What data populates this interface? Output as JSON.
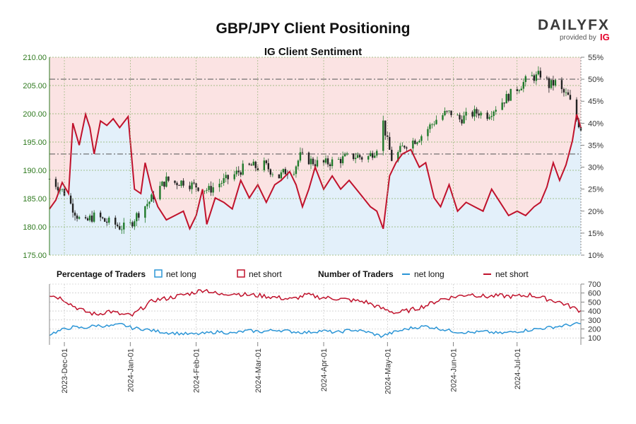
{
  "header": {
    "title": "GBP/JPY Client Positioning",
    "subtitle": "IG Client Sentiment"
  },
  "branding": {
    "logo": "DAILYFX",
    "provided_by": "provided by",
    "provider": "IG"
  },
  "colors": {
    "net_long": "#2b95d6",
    "net_short": "#c0122c",
    "long_zone": "#e3f0fa",
    "short_zone": "#fbe3e3",
    "candle_up": "#1f7a2a",
    "candle_down": "#222222",
    "left_axis": "#2f7a1f"
  },
  "legend": {
    "pct_heading": "Percentage of Traders",
    "num_heading": "Number of Traders",
    "net_long": "net long",
    "net_short": "net short"
  },
  "chart_data": [
    {
      "type": "candlestick+line",
      "title": "IG Client Sentiment",
      "y_left_ticks": [
        "210.00",
        "205.00",
        "200.00",
        "195.00",
        "190.00",
        "185.00",
        "180.00",
        "175.00"
      ],
      "y_left_range": [
        175,
        210
      ],
      "y_right_ticks": [
        "55%",
        "50%",
        "45%",
        "40%",
        "35%",
        "30%",
        "25%",
        "20%",
        "15%",
        "10%"
      ],
      "y_right_range": [
        10,
        55
      ],
      "x_ticks": [
        "2023-Dec-01",
        "2024-Jan-01",
        "2024-Feb-01",
        "2024-Mar-01",
        "2024-Apr-01",
        "2024-May-01",
        "2024-Jun-01",
        "2024-Jul-01"
      ],
      "reference_lines_pct": [
        50,
        33
      ],
      "price_keypoints": [
        [
          "2023-11-24",
          188.5
        ],
        [
          "2023-11-28",
          187.2
        ],
        [
          "2023-12-01",
          186.0
        ],
        [
          "2023-12-04",
          184.0
        ],
        [
          "2023-12-07",
          182.0
        ],
        [
          "2023-12-10",
          180.2
        ],
        [
          "2023-12-13",
          181.5
        ],
        [
          "2023-12-16",
          182.0
        ],
        [
          "2023-12-20",
          181.0
        ],
        [
          "2023-12-24",
          180.6
        ],
        [
          "2023-12-27",
          180.0
        ],
        [
          "2023-12-31",
          179.8
        ],
        [
          "2024-01-03",
          181.5
        ],
        [
          "2024-01-06",
          183.0
        ],
        [
          "2024-01-10",
          184.5
        ],
        [
          "2024-01-14",
          186.5
        ],
        [
          "2024-01-18",
          188.3
        ],
        [
          "2024-01-22",
          187.8
        ],
        [
          "2024-01-26",
          188.0
        ],
        [
          "2024-01-30",
          187.4
        ],
        [
          "2024-02-03",
          187.0
        ],
        [
          "2024-02-07",
          186.5
        ],
        [
          "2024-02-11",
          187.5
        ],
        [
          "2024-02-15",
          188.3
        ],
        [
          "2024-02-19",
          189.2
        ],
        [
          "2024-02-23",
          190.3
        ],
        [
          "2024-02-27",
          190.8
        ],
        [
          "2024-03-01",
          190.5
        ],
        [
          "2024-03-04",
          191.0
        ],
        [
          "2024-03-07",
          190.0
        ],
        [
          "2024-03-11",
          188.9
        ],
        [
          "2024-03-14",
          189.8
        ],
        [
          "2024-03-18",
          190.2
        ],
        [
          "2024-03-21",
          192.5
        ],
        [
          "2024-03-24",
          192.0
        ],
        [
          "2024-03-28",
          191.3
        ],
        [
          "2024-04-01",
          191.2
        ],
        [
          "2024-04-05",
          191.5
        ],
        [
          "2024-04-09",
          191.9
        ],
        [
          "2024-04-13",
          192.4
        ],
        [
          "2024-04-17",
          192.5
        ],
        [
          "2024-04-21",
          192.0
        ],
        [
          "2024-04-25",
          193.5
        ],
        [
          "2024-04-28",
          195.5
        ],
        [
          "2024-04-29",
          198.5
        ],
        [
          "2024-05-01",
          195.0
        ],
        [
          "2024-05-03",
          192.0
        ],
        [
          "2024-05-06",
          193.0
        ],
        [
          "2024-05-09",
          194.5
        ],
        [
          "2024-05-12",
          195.0
        ],
        [
          "2024-05-15",
          195.6
        ],
        [
          "2024-05-18",
          196.5
        ],
        [
          "2024-05-21",
          197.8
        ],
        [
          "2024-05-24",
          199.0
        ],
        [
          "2024-05-28",
          200.0
        ],
        [
          "2024-06-01",
          200.2
        ],
        [
          "2024-06-04",
          199.0
        ],
        [
          "2024-06-07",
          199.5
        ],
        [
          "2024-06-10",
          200.0
        ],
        [
          "2024-06-13",
          200.3
        ],
        [
          "2024-06-16",
          199.5
        ],
        [
          "2024-06-19",
          200.5
        ],
        [
          "2024-06-22",
          201.5
        ],
        [
          "2024-06-25",
          202.5
        ],
        [
          "2024-06-28",
          203.5
        ],
        [
          "2024-07-01",
          204.5
        ],
        [
          "2024-07-04",
          205.5
        ],
        [
          "2024-07-07",
          206.5
        ],
        [
          "2024-07-10",
          206.5
        ],
        [
          "2024-07-12",
          207.0
        ],
        [
          "2024-07-14",
          206.5
        ],
        [
          "2024-07-16",
          205.0
        ],
        [
          "2024-07-19",
          205.5
        ],
        [
          "2024-07-22",
          204.0
        ],
        [
          "2024-07-25",
          203.0
        ],
        [
          "2024-07-27",
          201.0
        ],
        [
          "2024-07-29",
          199.0
        ],
        [
          "2024-07-31",
          197.5
        ]
      ],
      "net_long_pct_keypoints": [
        [
          "2023-11-24",
          20.5
        ],
        [
          "2023-11-27",
          22.5
        ],
        [
          "2023-11-30",
          26.5
        ],
        [
          "2023-12-03",
          24.0
        ],
        [
          "2023-12-05",
          40.0
        ],
        [
          "2023-12-08",
          35.0
        ],
        [
          "2023-12-11",
          42.0
        ],
        [
          "2023-12-13",
          39.0
        ],
        [
          "2023-12-15",
          33.0
        ],
        [
          "2023-12-18",
          40.5
        ],
        [
          "2023-12-21",
          39.5
        ],
        [
          "2023-12-24",
          41.0
        ],
        [
          "2023-12-27",
          39.0
        ],
        [
          "2023-12-31",
          41.5
        ],
        [
          "2024-01-03",
          25.0
        ],
        [
          "2024-01-06",
          24.0
        ],
        [
          "2024-01-08",
          31.0
        ],
        [
          "2024-01-11",
          25.0
        ],
        [
          "2024-01-14",
          21.0
        ],
        [
          "2024-01-18",
          18.0
        ],
        [
          "2024-01-22",
          19.0
        ],
        [
          "2024-01-26",
          20.0
        ],
        [
          "2024-01-29",
          16.0
        ],
        [
          "2024-02-01",
          19.0
        ],
        [
          "2024-02-04",
          25.0
        ],
        [
          "2024-02-06",
          17.0
        ],
        [
          "2024-02-10",
          23.0
        ],
        [
          "2024-02-14",
          22.0
        ],
        [
          "2024-02-18",
          20.5
        ],
        [
          "2024-02-22",
          27.0
        ],
        [
          "2024-02-26",
          23.0
        ],
        [
          "2024-03-01",
          26.0
        ],
        [
          "2024-03-05",
          22.0
        ],
        [
          "2024-03-09",
          26.0
        ],
        [
          "2024-03-12",
          27.0
        ],
        [
          "2024-03-16",
          29.0
        ],
        [
          "2024-03-19",
          26.0
        ],
        [
          "2024-03-22",
          21.0
        ],
        [
          "2024-03-25",
          25.0
        ],
        [
          "2024-03-28",
          30.0
        ],
        [
          "2024-04-01",
          25.0
        ],
        [
          "2024-04-05",
          28.0
        ],
        [
          "2024-04-09",
          25.0
        ],
        [
          "2024-04-13",
          27.0
        ],
        [
          "2024-04-18",
          24.0
        ],
        [
          "2024-04-23",
          21.0
        ],
        [
          "2024-04-26",
          20.0
        ],
        [
          "2024-04-29",
          16.0
        ],
        [
          "2024-05-02",
          28.0
        ],
        [
          "2024-05-05",
          31.0
        ],
        [
          "2024-05-08",
          33.0
        ],
        [
          "2024-05-12",
          34.0
        ],
        [
          "2024-05-16",
          30.0
        ],
        [
          "2024-05-19",
          31.0
        ],
        [
          "2024-05-23",
          23.0
        ],
        [
          "2024-05-26",
          21.0
        ],
        [
          "2024-05-30",
          26.0
        ],
        [
          "2024-06-03",
          20.0
        ],
        [
          "2024-06-07",
          22.0
        ],
        [
          "2024-06-11",
          21.0
        ],
        [
          "2024-06-15",
          20.0
        ],
        [
          "2024-06-19",
          25.0
        ],
        [
          "2024-06-23",
          22.0
        ],
        [
          "2024-06-27",
          19.0
        ],
        [
          "2024-07-01",
          20.0
        ],
        [
          "2024-07-05",
          19.0
        ],
        [
          "2024-07-09",
          21.0
        ],
        [
          "2024-07-12",
          22.0
        ],
        [
          "2024-07-15",
          25.5
        ],
        [
          "2024-07-18",
          31.0
        ],
        [
          "2024-07-21",
          27.0
        ],
        [
          "2024-07-24",
          30.5
        ],
        [
          "2024-07-27",
          36.0
        ],
        [
          "2024-07-29",
          42.0
        ],
        [
          "2024-07-31",
          39.0
        ]
      ]
    },
    {
      "type": "line",
      "title": "Number of Traders",
      "y_ticks": [
        "700",
        "600",
        "500",
        "400",
        "300",
        "200",
        "100"
      ],
      "y_range": [
        70,
        700
      ],
      "net_short_keypoints": [
        [
          "2023-11-24",
          580
        ],
        [
          "2023-11-30",
          540
        ],
        [
          "2023-12-05",
          460
        ],
        [
          "2023-12-10",
          400
        ],
        [
          "2023-12-16",
          360
        ],
        [
          "2023-12-22",
          400
        ],
        [
          "2023-12-28",
          360
        ],
        [
          "2024-01-02",
          350
        ],
        [
          "2024-01-07",
          440
        ],
        [
          "2024-01-12",
          520
        ],
        [
          "2024-01-18",
          540
        ],
        [
          "2024-01-24",
          570
        ],
        [
          "2024-01-30",
          600
        ],
        [
          "2024-02-05",
          640
        ],
        [
          "2024-02-12",
          580
        ],
        [
          "2024-02-18",
          600
        ],
        [
          "2024-02-25",
          580
        ],
        [
          "2024-03-03",
          570
        ],
        [
          "2024-03-10",
          550
        ],
        [
          "2024-03-17",
          530
        ],
        [
          "2024-03-24",
          580
        ],
        [
          "2024-03-31",
          550
        ],
        [
          "2024-04-07",
          540
        ],
        [
          "2024-04-14",
          520
        ],
        [
          "2024-04-21",
          500
        ],
        [
          "2024-04-28",
          430
        ],
        [
          "2024-05-05",
          380
        ],
        [
          "2024-05-12",
          410
        ],
        [
          "2024-05-19",
          460
        ],
        [
          "2024-05-26",
          530
        ],
        [
          "2024-06-02",
          560
        ],
        [
          "2024-06-09",
          590
        ],
        [
          "2024-06-16",
          560
        ],
        [
          "2024-06-23",
          570
        ],
        [
          "2024-06-30",
          560
        ],
        [
          "2024-07-07",
          580
        ],
        [
          "2024-07-14",
          540
        ],
        [
          "2024-07-21",
          500
        ],
        [
          "2024-07-27",
          440
        ],
        [
          "2024-07-31",
          400
        ]
      ],
      "net_long_keypoints": [
        [
          "2023-11-24",
          140
        ],
        [
          "2023-11-30",
          190
        ],
        [
          "2023-12-05",
          220
        ],
        [
          "2023-12-10",
          210
        ],
        [
          "2023-12-16",
          240
        ],
        [
          "2023-12-22",
          230
        ],
        [
          "2023-12-28",
          250
        ],
        [
          "2024-01-02",
          210
        ],
        [
          "2024-01-07",
          200
        ],
        [
          "2024-01-12",
          180
        ],
        [
          "2024-01-18",
          160
        ],
        [
          "2024-01-24",
          150
        ],
        [
          "2024-01-30",
          140
        ],
        [
          "2024-02-05",
          150
        ],
        [
          "2024-02-12",
          170
        ],
        [
          "2024-02-18",
          150
        ],
        [
          "2024-02-25",
          180
        ],
        [
          "2024-03-03",
          170
        ],
        [
          "2024-03-10",
          190
        ],
        [
          "2024-03-17",
          170
        ],
        [
          "2024-03-24",
          160
        ],
        [
          "2024-03-31",
          180
        ],
        [
          "2024-04-07",
          160
        ],
        [
          "2024-04-14",
          190
        ],
        [
          "2024-04-21",
          170
        ],
        [
          "2024-04-28",
          120
        ],
        [
          "2024-05-05",
          170
        ],
        [
          "2024-05-12",
          210
        ],
        [
          "2024-05-19",
          230
        ],
        [
          "2024-05-26",
          200
        ],
        [
          "2024-06-02",
          170
        ],
        [
          "2024-06-09",
          160
        ],
        [
          "2024-06-16",
          170
        ],
        [
          "2024-06-23",
          150
        ],
        [
          "2024-06-30",
          170
        ],
        [
          "2024-07-07",
          190
        ],
        [
          "2024-07-14",
          210
        ],
        [
          "2024-07-21",
          230
        ],
        [
          "2024-07-27",
          250
        ],
        [
          "2024-07-31",
          260
        ]
      ]
    }
  ]
}
